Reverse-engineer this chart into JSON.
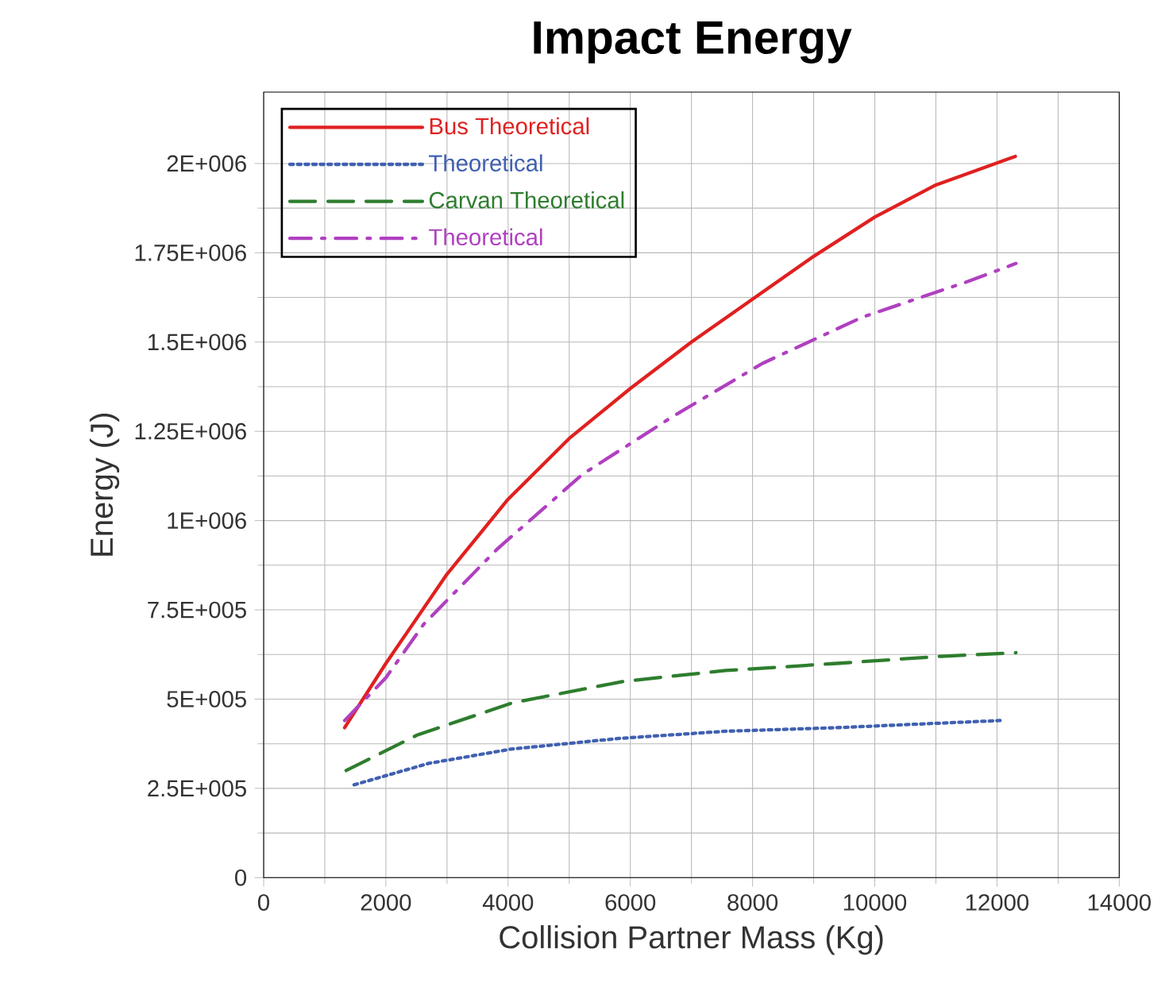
{
  "chart_data": {
    "type": "line",
    "title": "Impact Energy",
    "xlabel": "Collision Partner Mass (Kg)",
    "ylabel": "Energy (J)",
    "xlim": [
      0,
      14000
    ],
    "xticks": [
      0,
      2000,
      4000,
      6000,
      8000,
      10000,
      12000,
      14000
    ],
    "ylim": [
      0,
      2200000
    ],
    "yticks": [
      0,
      {
        "value": 250000,
        "label": "2.5E+005"
      },
      {
        "value": 500000,
        "label": "5E+005"
      },
      {
        "value": 750000,
        "label": "7.5E+005"
      },
      {
        "value": 1000000,
        "label": "1E+006"
      },
      {
        "value": 1250000,
        "label": "1.25E+006"
      },
      {
        "value": 1500000,
        "label": "1.5E+006"
      },
      {
        "value": 1750000,
        "label": "1.75E+006"
      },
      {
        "value": 2000000,
        "label": "2E+006"
      }
    ],
    "grid": true,
    "legend": "top left",
    "series": [
      {
        "name": "Bus Theoretical",
        "color": "#e02020",
        "line_style": "solid",
        "x": [
          1325,
          2000,
          3000,
          4000,
          5000,
          6000,
          7000,
          8000,
          9000,
          10000,
          11000,
          12300
        ],
        "values": [
          420000,
          600000,
          850000,
          1060000,
          1230000,
          1370000,
          1500000,
          1620000,
          1740000,
          1850000,
          1940000,
          2020000
        ]
      },
      {
        "name": "Theoretical",
        "color": "#4060b0",
        "line_style": "dotted",
        "x": [
          1480,
          2700,
          4050,
          5820,
          7560,
          9380,
          12050
        ],
        "values": [
          260000,
          320000,
          360000,
          390000,
          410000,
          420000,
          440000
        ]
      },
      {
        "name": "Carvan Theoretical",
        "color": "#2e7d2e",
        "line_style": "dashed",
        "x": [
          1350,
          2520,
          4080,
          5900,
          7560,
          9380,
          11090,
          12310
        ],
        "values": [
          300000,
          400000,
          490000,
          550000,
          580000,
          600000,
          620000,
          630000
        ]
      },
      {
        "name": "Theoretical",
        "color": "#b040c0",
        "line_style": "dashdot",
        "x": [
          1325,
          2000,
          2620,
          3820,
          5220,
          6680,
          8160,
          9800,
          11530,
          12310
        ],
        "values": [
          440000,
          560000,
          710000,
          920000,
          1130000,
          1290000,
          1440000,
          1570000,
          1670000,
          1720000
        ]
      }
    ]
  }
}
